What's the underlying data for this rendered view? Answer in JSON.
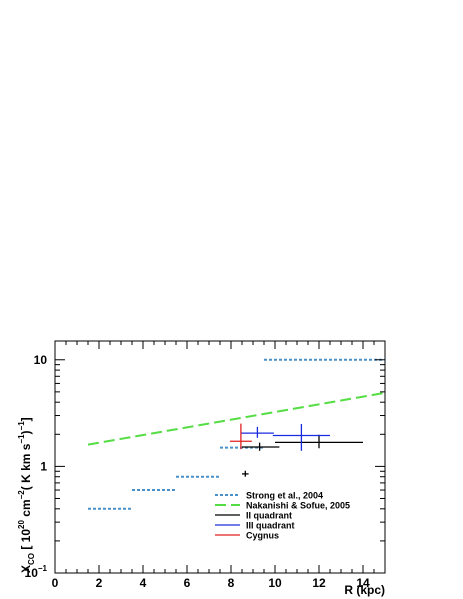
{
  "chart_data": {
    "type": "scatter",
    "xlabel": "R (kpc)",
    "ylabel_parts": {
      "main": "X",
      "sub": "CO",
      "bracket_open": " [ 10",
      "exp1": "20",
      "unit1": " cm",
      "exp2": "−2",
      "unit2": "( K km s",
      "exp3": "−1",
      "unit3": ")",
      "exp4": "−1",
      "bracket_close": "]"
    },
    "xlim": [
      0,
      15
    ],
    "ylim": [
      0.1,
      15
    ],
    "yscale": "log",
    "x_ticks": [
      {
        "value": 0,
        "label": "0"
      },
      {
        "value": 2,
        "label": "2"
      },
      {
        "value": 4,
        "label": "4"
      },
      {
        "value": 6,
        "label": "6"
      },
      {
        "value": 8,
        "label": "8"
      },
      {
        "value": 10,
        "label": "10"
      },
      {
        "value": 12,
        "label": "12"
      },
      {
        "value": 14,
        "label": "14"
      }
    ],
    "y_major_ticks": [
      {
        "value": 0.1,
        "label": "10",
        "exp": "−1"
      },
      {
        "value": 1,
        "label": "1",
        "exp": ""
      },
      {
        "value": 10,
        "label": "10",
        "exp": ""
      }
    ],
    "legend": {
      "position": "bottom-right",
      "entries": [
        {
          "label": "Strong et al., 2004",
          "color": "#4a90c8",
          "dash": "3,2",
          "width": 2
        },
        {
          "label": "Nakanishi & Sofue, 2005",
          "color": "#55dd44",
          "dash": "11,5",
          "width": 2
        },
        {
          "label": "II quadrant",
          "color": "#000000",
          "dash": "",
          "width": 1.3
        },
        {
          "label": "III quadrant",
          "color": "#1a2ce0",
          "dash": "",
          "width": 1.3
        },
        {
          "label": "Cygnus",
          "color": "#e02020",
          "dash": "",
          "width": 1.3
        }
      ]
    },
    "strong_segments": [
      {
        "x0": 1.5,
        "x1": 3.5,
        "y": 0.4
      },
      {
        "x0": 3.5,
        "x1": 5.5,
        "y": 0.6
      },
      {
        "x0": 5.5,
        "x1": 7.5,
        "y": 0.8
      },
      {
        "x0": 7.5,
        "x1": 9.5,
        "y": 1.5
      },
      {
        "x0": 9.5,
        "x1": 15.0,
        "y": 10.0
      }
    ],
    "nakanishi_line": {
      "x": [
        1.5,
        15.0
      ],
      "y": [
        1.6,
        4.9
      ]
    },
    "points": [
      {
        "series": "II quadrant",
        "color": "#000000",
        "x": 8.65,
        "y": 0.85,
        "xerr": [
          0.15,
          0.15
        ],
        "yerr": [
          0.05,
          0.06
        ]
      },
      {
        "series": "II quadrant",
        "color": "#000000",
        "x": 9.3,
        "y": 1.52,
        "xerr": [
          0.8,
          0.9
        ],
        "yerr": [
          0.12,
          0.15
        ]
      },
      {
        "series": "II quadrant",
        "color": "#000000",
        "x": 12.0,
        "y": 1.68,
        "xerr": [
          2.0,
          2.0
        ],
        "yerr": [
          0.2,
          0.3
        ]
      },
      {
        "series": "III quadrant",
        "color": "#1a2ce0",
        "x": 9.2,
        "y": 2.05,
        "xerr": [
          0.75,
          0.75
        ],
        "yerr": [
          0.2,
          0.3
        ]
      },
      {
        "series": "III quadrant",
        "color": "#1a2ce0",
        "x": 11.2,
        "y": 1.95,
        "xerr": [
          1.3,
          1.3
        ],
        "yerr": [
          0.55,
          0.55
        ]
      },
      {
        "series": "Cygnus",
        "color": "#e02020",
        "x": 8.45,
        "y": 1.72,
        "xerr": [
          0.5,
          0.5
        ],
        "yerr": [
          0.27,
          0.8
        ]
      }
    ]
  }
}
